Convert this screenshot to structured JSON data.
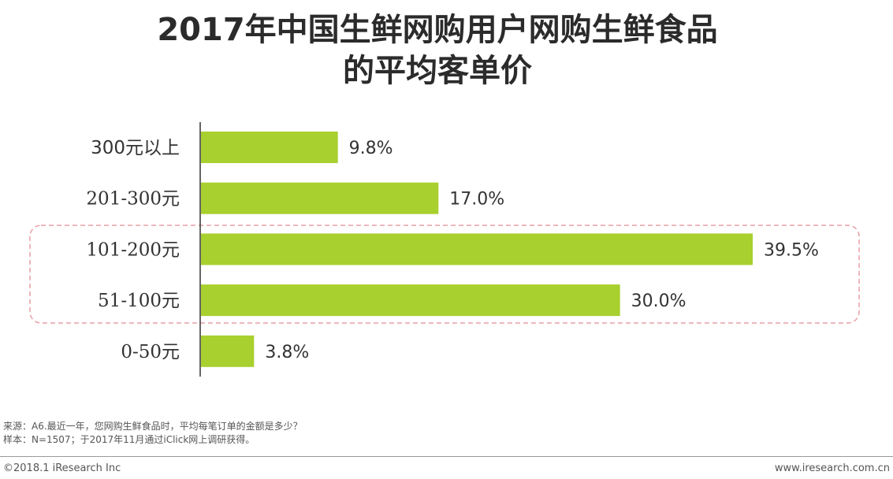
{
  "title_line1": "2017年中国生鲜网购用户网购生鲜食品",
  "title_line2": "的平均客单价",
  "chart_data": {
    "type": "bar",
    "orientation": "horizontal",
    "categories": [
      "300元以上",
      "201-300元",
      "101-200元",
      "51-100元",
      "0-50元"
    ],
    "values": [
      9.8,
      17.0,
      39.5,
      30.0,
      3.8
    ],
    "value_labels": [
      "9.8%",
      "17.0%",
      "39.5%",
      "30.0%",
      "3.8%"
    ],
    "unit": "%",
    "xlim": [
      0,
      40
    ],
    "grid": false,
    "legend": "none",
    "highlighted_categories": [
      "101-200元",
      "51-100元"
    ],
    "colors": {
      "bar": "#a8d02e",
      "highlight_box": "#e8a0a6",
      "axis": "#333333"
    }
  },
  "source_line1": "来源：A6.最近一年，您网购生鲜食品时，平均每笔订单的金额是多少？",
  "source_line2": "样本：N=1507；于2017年11月通过iClick网上调研获得。",
  "copyright": "©2018.1 iResearch Inc",
  "website": "www.iresearch.com.cn"
}
